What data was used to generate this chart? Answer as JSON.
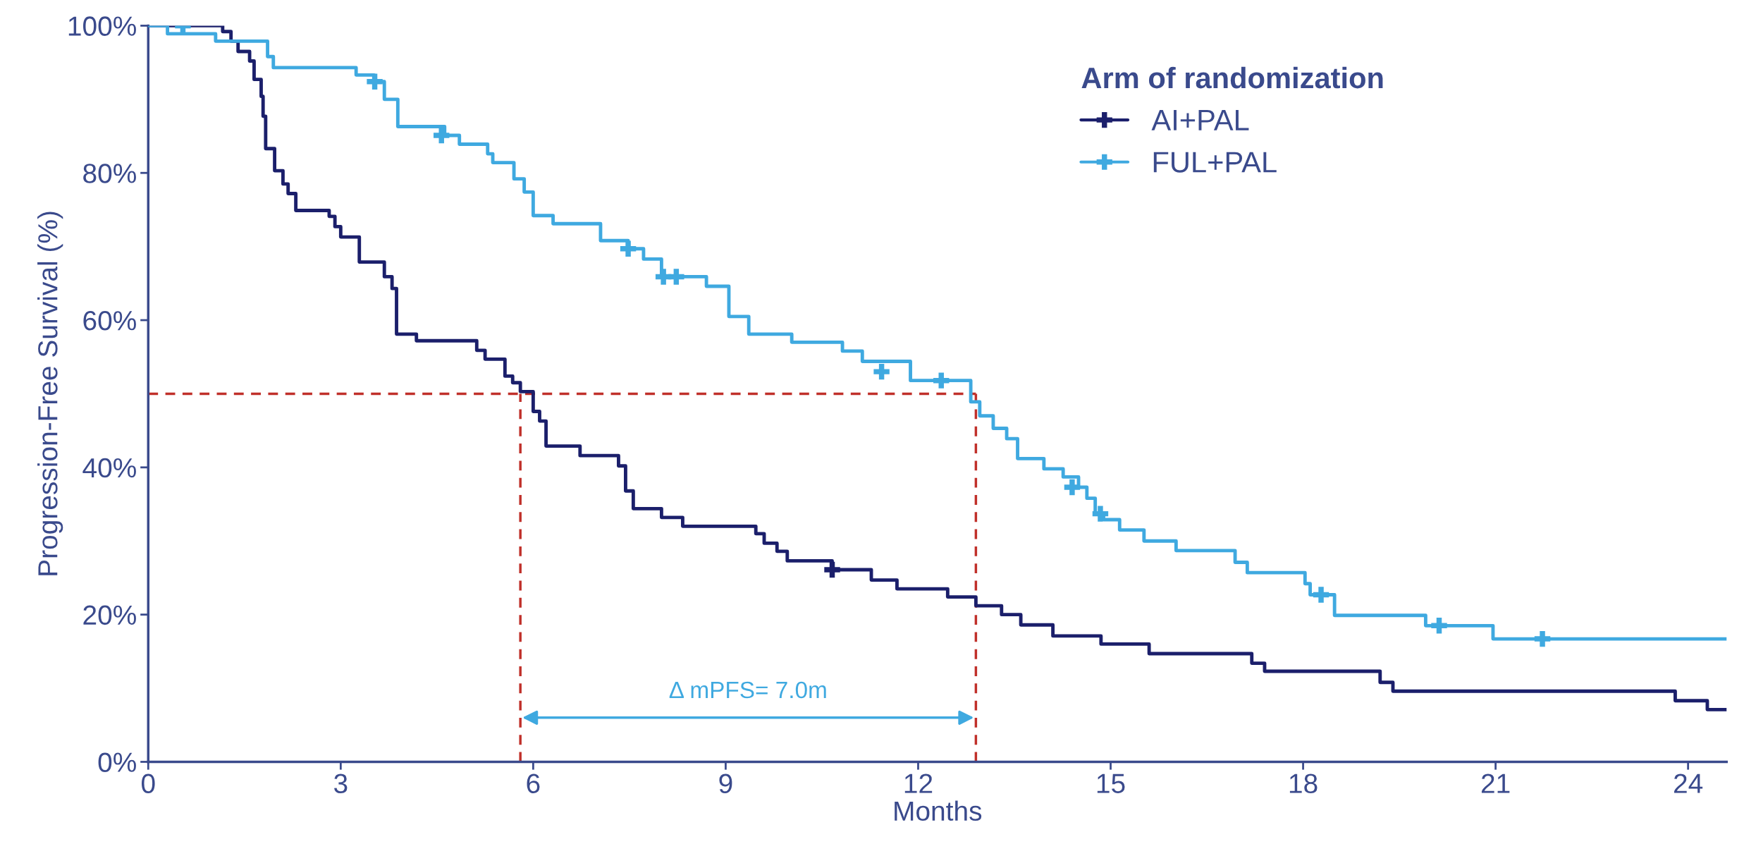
{
  "chart_data": {
    "type": "step",
    "xlabel": "Months",
    "ylabel": "Progression-Free Survival (%)",
    "legend_title": "Arm of randomization",
    "legend": "top right",
    "grid": false,
    "xlim": [
      0,
      24.6
    ],
    "xticks": [
      0,
      3,
      6,
      9,
      12,
      15,
      18,
      21,
      24
    ],
    "ylim": [
      0,
      100
    ],
    "yticks": [
      {
        "value": 0,
        "label": "0%"
      },
      {
        "value": 20,
        "label": "20%"
      },
      {
        "value": 40,
        "label": "40%"
      },
      {
        "value": 60,
        "label": "60%"
      },
      {
        "value": 80,
        "label": "80%"
      },
      {
        "value": 100,
        "label": "100%"
      }
    ],
    "series": [
      {
        "name": "AI+PAL",
        "color": "#1b1f6b",
        "x": [
          0,
          1.16,
          1.29,
          1.4,
          1.58,
          1.65,
          1.76,
          1.79,
          1.83,
          1.97,
          2.1,
          2.18,
          2.3,
          2.82,
          2.91,
          3.0,
          3.29,
          3.68,
          3.8,
          3.87,
          4.18,
          5.12,
          5.25,
          5.56,
          5.68,
          5.8,
          6.0,
          6.1,
          6.2,
          6.73,
          7.33,
          7.44,
          7.56,
          8.0,
          8.33,
          9.47,
          9.6,
          9.8,
          9.96,
          10.66,
          11.27,
          11.67,
          12.46,
          12.9,
          13.3,
          13.6,
          14.1,
          14.85,
          15.6,
          17.2,
          17.4,
          19.2,
          19.4,
          23.8,
          24.3,
          24.6
        ],
        "values": [
          100,
          99.2,
          97.9,
          96.5,
          95.2,
          92.7,
          90.4,
          87.7,
          83.3,
          80.3,
          78.5,
          77.2,
          74.9,
          74.1,
          72.7,
          71.3,
          67.9,
          65.9,
          64.3,
          58.1,
          57.2,
          55.9,
          54.7,
          52.4,
          51.5,
          50.3,
          47.6,
          46.3,
          42.9,
          41.6,
          40.2,
          36.8,
          34.4,
          33.2,
          32.0,
          31.0,
          29.7,
          28.6,
          27.3,
          26.1,
          24.7,
          23.5,
          22.4,
          21.2,
          20.0,
          18.6,
          17.1,
          16.0,
          14.7,
          13.4,
          12.3,
          10.8,
          9.6,
          8.3,
          7.1,
          7.1
        ]
      },
      {
        "name": "FUL+PAL",
        "color": "#3fa9e0",
        "x": [
          0,
          0.3,
          1.05,
          1.86,
          1.95,
          3.24,
          3.52,
          3.68,
          3.89,
          4.62,
          4.85,
          5.29,
          5.37,
          5.7,
          5.86,
          6.0,
          6.31,
          7.05,
          7.48,
          7.72,
          8.0,
          8.7,
          9.05,
          9.36,
          10.03,
          10.82,
          11.13,
          11.88,
          12.82,
          12.96,
          13.17,
          13.38,
          13.55,
          13.96,
          14.26,
          14.5,
          14.63,
          14.76,
          14.89,
          15.14,
          15.52,
          16.02,
          16.94,
          17.13,
          18.03,
          18.11,
          18.49,
          19.91,
          20.96,
          24.6
        ],
        "values": [
          100,
          98.9,
          97.9,
          95.8,
          94.3,
          93.3,
          92.4,
          90.0,
          86.3,
          85.1,
          83.9,
          82.6,
          81.4,
          79.2,
          77.4,
          74.2,
          73.1,
          70.8,
          69.7,
          68.3,
          65.9,
          64.6,
          60.5,
          58.1,
          57.0,
          55.8,
          54.4,
          51.8,
          48.9,
          47.0,
          45.3,
          43.9,
          41.2,
          39.8,
          38.7,
          37.3,
          35.8,
          33.7,
          32.9,
          31.5,
          30.0,
          28.7,
          27.1,
          25.7,
          24.2,
          22.7,
          19.9,
          18.5,
          16.7,
          16.7
        ]
      },
      {
        "type": "scatter",
        "marker": "cross",
        "color": "#1b1f6b",
        "x": [
          10.66
        ],
        "values": [
          26.1
        ]
      },
      {
        "type": "scatter",
        "marker": "cross",
        "color": "#3fa9e0",
        "x": [
          0.54,
          3.53,
          4.57,
          7.48,
          8.03,
          8.23,
          11.43,
          12.36,
          14.4,
          14.84,
          18.28,
          20.12,
          21.73
        ],
        "values": [
          100,
          92.4,
          85.1,
          69.7,
          65.9,
          65.9,
          53.0,
          51.8,
          37.3,
          33.7,
          22.7,
          18.5,
          16.7
        ]
      }
    ],
    "ref_lines": [
      {
        "axis": "y",
        "value": 50,
        "color": "#c0302a",
        "line_style": "dashed"
      },
      {
        "axis": "x",
        "value": 5.8,
        "color": "#c0302a",
        "line_style": "dashed"
      },
      {
        "axis": "x",
        "value": 12.9,
        "color": "#c0302a",
        "line_style": "dashed"
      }
    ],
    "annotations": [
      "Δ mPFS= 7.0m"
    ]
  }
}
